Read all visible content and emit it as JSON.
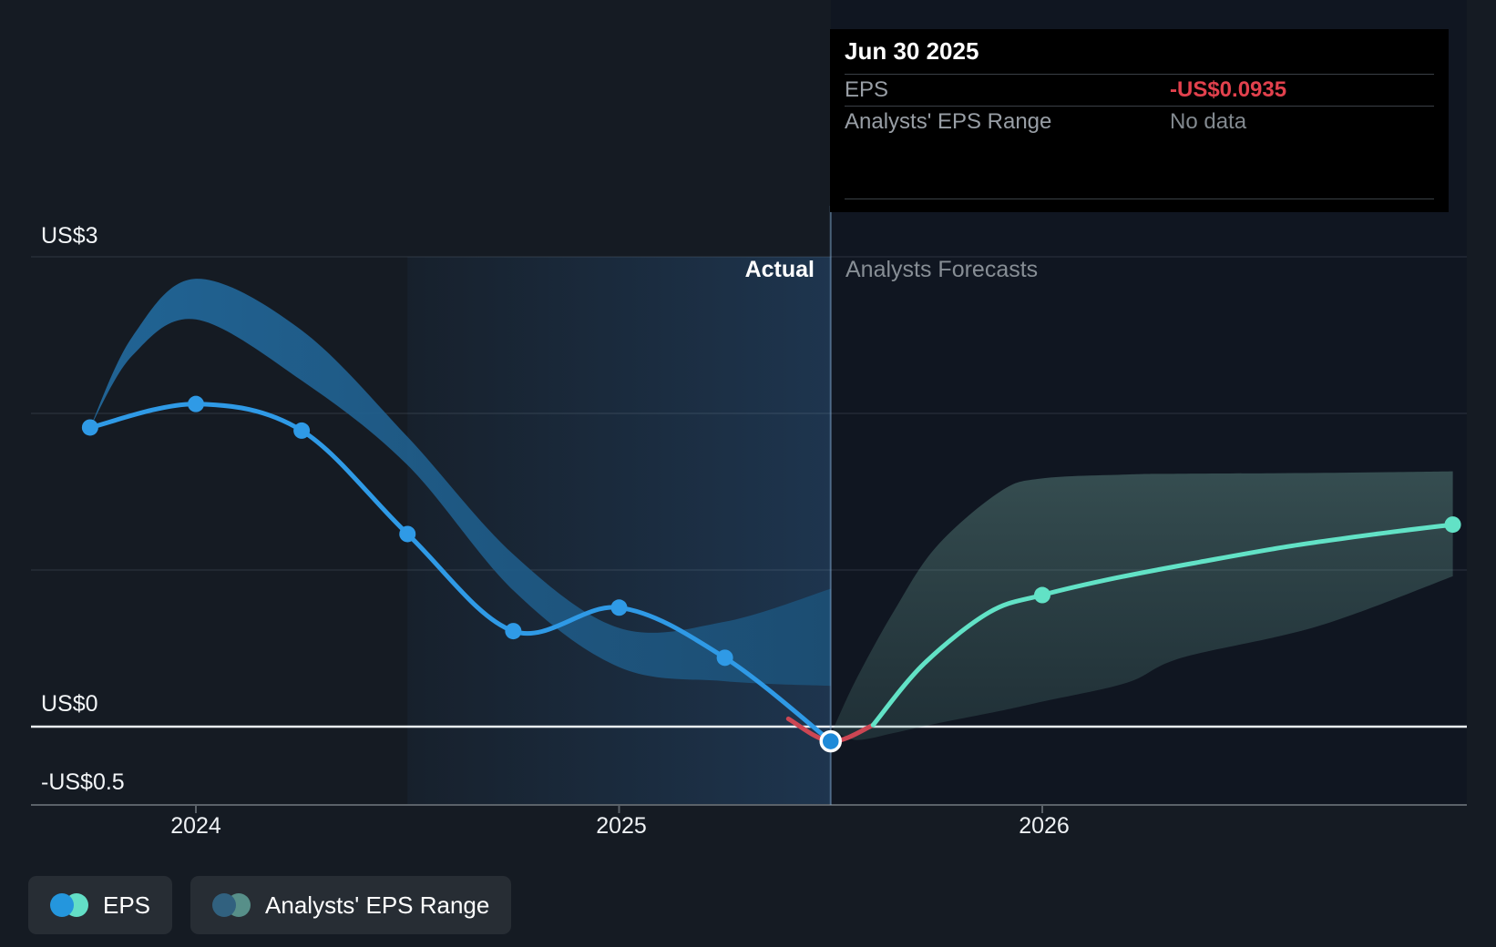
{
  "tooltip": {
    "date": "Jun 30 2025",
    "rows": [
      {
        "label": "EPS",
        "value": "-US$0.0935"
      },
      {
        "label": "Analysts' EPS Range",
        "value": "No data"
      }
    ],
    "eps_value_color": "#e2414d",
    "nodata_color": "#82898f"
  },
  "region_labels": {
    "actual": "Actual",
    "forecasts": "Analysts Forecasts"
  },
  "legend": {
    "items": [
      {
        "label": "EPS",
        "colors": [
          "#2496dd",
          "#63dec6"
        ]
      },
      {
        "label": "Analysts' EPS Range",
        "colors": [
          "#31617f",
          "#578f89"
        ]
      }
    ]
  },
  "chart_data": {
    "type": "line",
    "title": "EPS actuals vs analysts forecasts",
    "x_units": "decimal_years",
    "xticks": [
      {
        "x": 2024,
        "label": "2024"
      },
      {
        "x": 2025,
        "label": "2025"
      },
      {
        "x": 2026,
        "label": "2026"
      }
    ],
    "yticks": [
      {
        "v": 3,
        "label": "US$3"
      },
      {
        "v": 2,
        "label": ""
      },
      {
        "v": 1,
        "label": ""
      },
      {
        "v": 0,
        "label": "US$0"
      },
      {
        "v": -0.5,
        "label": "-US$0.5"
      }
    ],
    "ylim": [
      -0.5,
      3.05
    ],
    "xlim": [
      2023.61,
      2027.0
    ],
    "divider_x": 2025.5,
    "highlight_x": [
      2024.5,
      2025.5
    ],
    "grid": true,
    "legend_position": "bottom-left",
    "colors": {
      "actual_line": "#2f9ae6",
      "negative_line": "#cc4653",
      "forecast_line": "#62e2c6",
      "actual_band": [
        "#226a9e",
        "#1c4f75"
      ],
      "forecast_band": [
        "rgba(140,205,190,0.30)",
        "rgba(95,150,140,0.20)"
      ],
      "zero_line": "#e9eef2",
      "axis_line": "#5b6269",
      "gridline": "rgba(210,222,235,0.15)",
      "divider": "rgba(130,170,210,0.5)",
      "highlight_fill": [
        "rgba(52,120,190,0.06)",
        "rgba(52,120,190,0.28)"
      ],
      "forecast_bg": "#101621"
    },
    "series": [
      {
        "name": "EPS actual",
        "color": "#2f9ae6",
        "dots": true,
        "points": [
          [
            2023.75,
            1.91
          ],
          [
            2024.0,
            2.06
          ],
          [
            2024.25,
            1.89
          ],
          [
            2024.5,
            1.23
          ],
          [
            2024.75,
            0.61
          ],
          [
            2025.0,
            0.76
          ],
          [
            2025.25,
            0.44
          ],
          [
            2025.5,
            -0.0935
          ]
        ]
      },
      {
        "name": "EPS negative dip",
        "color": "#cc4653",
        "dots": false,
        "points": [
          [
            2025.4,
            0.05
          ],
          [
            2025.5,
            -0.0935
          ],
          [
            2025.6,
            0.01
          ]
        ]
      },
      {
        "name": "EPS forecast",
        "color": "#62e2c6",
        "dots": false,
        "points": [
          [
            2025.6,
            0.01
          ],
          [
            2025.72,
            0.4
          ],
          [
            2025.875,
            0.73
          ],
          [
            2026.0,
            0.84
          ],
          [
            2026.175,
            0.95
          ],
          [
            2026.37,
            1.05
          ],
          [
            2026.58,
            1.15
          ],
          [
            2026.79,
            1.23
          ],
          [
            2026.97,
            1.29
          ]
        ],
        "dot_points": [
          [
            2026.0,
            0.84
          ],
          [
            2026.97,
            1.29
          ]
        ]
      }
    ],
    "highlight_point": {
      "x": 2025.5,
      "v": -0.0935
    },
    "bands": [
      {
        "name": "analysts range over actual period",
        "fill": "actual_band",
        "points": [
          [
            2023.75,
            1.91,
            1.91
          ],
          [
            2023.85,
            2.49,
            2.37
          ],
          [
            2024.0,
            2.86,
            2.6
          ],
          [
            2024.25,
            2.53,
            2.21
          ],
          [
            2024.5,
            1.85,
            1.67
          ],
          [
            2024.75,
            1.1,
            0.87
          ],
          [
            2025.0,
            0.63,
            0.38
          ],
          [
            2025.25,
            0.67,
            0.29
          ],
          [
            2025.5,
            0.88,
            0.26
          ]
        ]
      },
      {
        "name": "analysts forecast range",
        "fill": "forecast_band",
        "points": [
          [
            2025.505,
            -0.02,
            -0.02
          ],
          [
            2025.56,
            0.3,
            -0.085
          ],
          [
            2025.65,
            0.74,
            -0.04
          ],
          [
            2025.75,
            1.15,
            0.02
          ],
          [
            2025.9,
            1.5,
            0.1
          ],
          [
            2026.0,
            1.585,
            0.16
          ],
          [
            2026.2,
            1.61,
            0.28
          ],
          [
            2026.33,
            1.615,
            0.44
          ],
          [
            2026.65,
            1.62,
            0.64
          ],
          [
            2026.97,
            1.63,
            0.96
          ]
        ]
      }
    ]
  }
}
